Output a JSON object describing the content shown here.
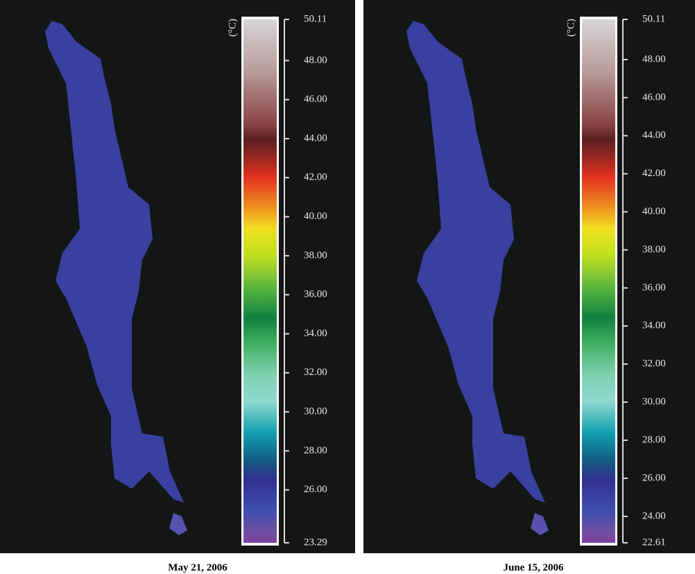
{
  "panels": [
    {
      "caption": "May 21, 2006",
      "unit": "(°C)",
      "ticks": [
        {
          "value": 50.11,
          "label": "50.11"
        },
        {
          "value": 48,
          "label": "48.00"
        },
        {
          "value": 46,
          "label": "46.00"
        },
        {
          "value": 44,
          "label": "44.00"
        },
        {
          "value": 42,
          "label": "42.00"
        },
        {
          "value": 40,
          "label": "40.00"
        },
        {
          "value": 38,
          "label": "38.00"
        },
        {
          "value": 36,
          "label": "36.00"
        },
        {
          "value": 34,
          "label": "34.00"
        },
        {
          "value": 32,
          "label": "32.00"
        },
        {
          "value": 30,
          "label": "30.00"
        },
        {
          "value": 28,
          "label": "28.00"
        },
        {
          "value": 26,
          "label": "26.00"
        },
        {
          "value": 23.29,
          "label": "23.29"
        }
      ]
    },
    {
      "caption": "June 15, 2006",
      "unit": "(°C)",
      "ticks": [
        {
          "value": 50.11,
          "label": "50.11"
        },
        {
          "value": 48,
          "label": "48.00"
        },
        {
          "value": 46,
          "label": "46.00"
        },
        {
          "value": 44,
          "label": "44.00"
        },
        {
          "value": 42,
          "label": "42.00"
        },
        {
          "value": 40,
          "label": "40.00"
        },
        {
          "value": 38,
          "label": "38.00"
        },
        {
          "value": 36,
          "label": "36.00"
        },
        {
          "value": 34,
          "label": "34.00"
        },
        {
          "value": 32,
          "label": "32.00"
        },
        {
          "value": 30,
          "label": "30.00"
        },
        {
          "value": 28,
          "label": "28.00"
        },
        {
          "value": 26,
          "label": "26.00"
        },
        {
          "value": 24,
          "label": "24.00"
        },
        {
          "value": 22.61,
          "label": "22.61"
        }
      ]
    }
  ]
}
